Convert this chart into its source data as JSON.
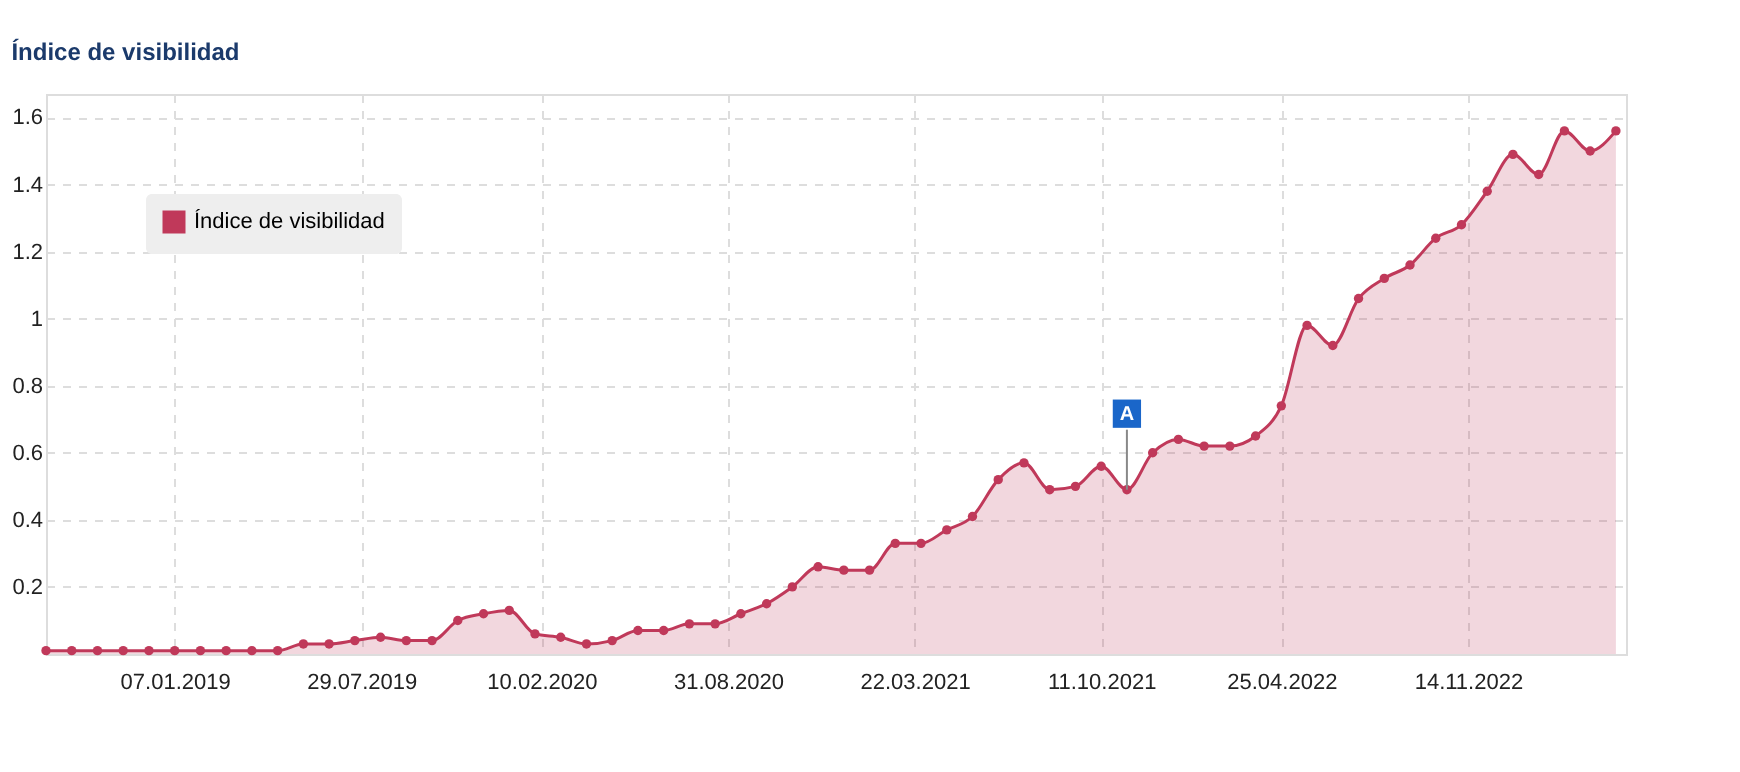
{
  "chart_data": {
    "type": "area",
    "title": "Índice de visibilidad",
    "x": [
      "2018-08-20",
      "2018-09-17",
      "2018-10-15",
      "2018-11-12",
      "2018-12-10",
      "2019-01-07",
      "2019-02-04",
      "2019-03-04",
      "2019-04-01",
      "2019-04-29",
      "2019-05-27",
      "2019-06-24",
      "2019-07-22",
      "2019-08-19",
      "2019-09-16",
      "2019-10-14",
      "2019-11-11",
      "2019-12-09",
      "2020-01-06",
      "2020-02-03",
      "2020-03-02",
      "2020-03-30",
      "2020-04-27",
      "2020-05-25",
      "2020-06-22",
      "2020-07-20",
      "2020-08-17",
      "2020-09-14",
      "2020-10-12",
      "2020-11-09",
      "2020-12-07",
      "2021-01-04",
      "2021-02-01",
      "2021-03-01",
      "2021-03-29",
      "2021-04-26",
      "2021-05-24",
      "2021-06-21",
      "2021-07-19",
      "2021-08-16",
      "2021-09-13",
      "2021-10-11",
      "2021-11-08",
      "2021-12-06",
      "2022-01-03",
      "2022-01-31",
      "2022-02-28",
      "2022-03-28",
      "2022-04-25",
      "2022-05-23",
      "2022-06-20",
      "2022-07-18",
      "2022-08-15",
      "2022-09-12",
      "2022-10-10",
      "2022-11-07",
      "2022-12-05",
      "2023-01-02",
      "2023-01-30",
      "2023-02-27",
      "2023-03-27",
      "2023-04-24"
    ],
    "series": [
      {
        "name": "Índice de visibilidad",
        "color": "#c0395a",
        "values": [
          0.01,
          0.01,
          0.01,
          0.01,
          0.01,
          0.01,
          0.01,
          0.01,
          0.01,
          0.01,
          0.03,
          0.03,
          0.04,
          0.05,
          0.04,
          0.04,
          0.1,
          0.12,
          0.13,
          0.06,
          0.05,
          0.03,
          0.04,
          0.07,
          0.07,
          0.09,
          0.09,
          0.12,
          0.15,
          0.2,
          0.26,
          0.25,
          0.25,
          0.33,
          0.33,
          0.37,
          0.41,
          0.52,
          0.57,
          0.49,
          0.5,
          0.56,
          0.49,
          0.6,
          0.64,
          0.62,
          0.62,
          0.65,
          0.74,
          0.98,
          0.92,
          1.06,
          1.12,
          1.16,
          1.24,
          1.28,
          1.38,
          1.49,
          1.43,
          1.56,
          1.5,
          1.56
        ]
      }
    ],
    "annotations": [
      {
        "text": "A",
        "x": "2021-11-08",
        "y": 0.49
      }
    ],
    "xlim": [
      "2018-08-20",
      "2023-05-05"
    ],
    "xticks": [
      {
        "value": "2019-01-07",
        "label": "07.01.2019"
      },
      {
        "value": "2019-07-29",
        "label": "29.07.2019"
      },
      {
        "value": "2020-02-10",
        "label": "10.02.2020"
      },
      {
        "value": "2020-08-31",
        "label": "31.08.2020"
      },
      {
        "value": "2021-03-22",
        "label": "22.03.2021"
      },
      {
        "value": "2021-10-11",
        "label": "11.10.2021"
      },
      {
        "value": "2022-04-25",
        "label": "25.04.2022"
      },
      {
        "value": "2022-11-14",
        "label": "14.11.2022"
      }
    ],
    "ylim": [
      0,
      1.67
    ],
    "yticks": [
      0.2,
      0.4,
      0.6,
      0.8,
      1,
      1.2,
      1.4,
      1.6
    ],
    "grid": true,
    "legend": "top left",
    "marker": "circle",
    "line_style": "solid"
  }
}
